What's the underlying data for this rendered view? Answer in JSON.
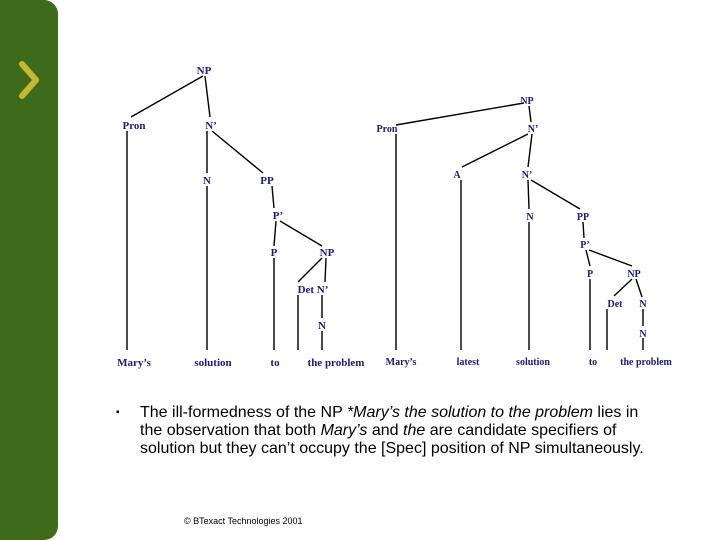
{
  "sidebar": {
    "chevron_icon": "chevron-right-icon",
    "accent_color": "#3d6b1a",
    "chevron_color": "#c8b830"
  },
  "tree_left": {
    "labels": {
      "np_root": "NP",
      "pron": "Pron",
      "n_bar": "N’",
      "n": "N",
      "pp": "PP",
      "p_bar": "P’",
      "p": "P",
      "np_inner": "NP",
      "det_nbar": "Det N’",
      "n_inner": "N"
    },
    "words": [
      "Mary’s",
      "solution",
      "to",
      "the problem"
    ]
  },
  "tree_right": {
    "labels": {
      "np_root": "NP",
      "pron": "Pron",
      "n_bar_top": "N’",
      "a": "A",
      "n_bar": "N’",
      "n": "N",
      "pp": "PP",
      "p_bar": "P’",
      "p": "P",
      "np_inner": "NP",
      "det": "Det",
      "n_mid": "N",
      "n_low": "N"
    },
    "words": [
      "Mary’s",
      "latest",
      "solution",
      "to",
      "the problem"
    ]
  },
  "bullet": {
    "marker": "▪",
    "t1": "The ill-formedness of the NP ",
    "t2": "*Mary’s the solution to the problem",
    "t3": " lies in the observation that both ",
    "t4": "Mary’s",
    "t5": " and ",
    "t6": "the",
    "t7": " are candidate specifiers of solution but they can’t occupy the [Spec] position of NP simultaneously."
  },
  "footer": {
    "text": "© BTexact Technologies 2001"
  }
}
